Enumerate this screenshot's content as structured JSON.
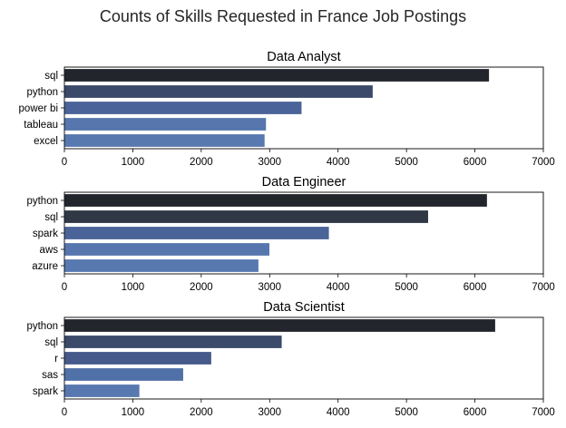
{
  "figure": {
    "title": "Counts of Skills Requested in France Job Postings"
  },
  "chart_data": [
    {
      "type": "bar",
      "orientation": "horizontal",
      "title": "Data Analyst",
      "categories": [
        "sql",
        "python",
        "power bi",
        "tableau",
        "excel"
      ],
      "values": [
        6210,
        4510,
        3470,
        2950,
        2930
      ],
      "xlim": [
        0,
        7000
      ],
      "xticks": [
        0,
        1000,
        2000,
        3000,
        4000,
        5000,
        6000,
        7000
      ],
      "xlabel": "",
      "ylabel": "",
      "grid": false,
      "colors": [
        "#22252b",
        "#3b4a6a",
        "#4a6398",
        "#5676ad",
        "#5878b0"
      ]
    },
    {
      "type": "bar",
      "orientation": "horizontal",
      "title": "Data Engineer",
      "categories": [
        "python",
        "sql",
        "spark",
        "aws",
        "azure"
      ],
      "values": [
        6180,
        5320,
        3870,
        3000,
        2840
      ],
      "xlim": [
        0,
        7000
      ],
      "xticks": [
        0,
        1000,
        2000,
        3000,
        4000,
        5000,
        6000,
        7000
      ],
      "xlabel": "",
      "ylabel": "",
      "grid": false,
      "colors": [
        "#22252b",
        "#303846",
        "#4a6398",
        "#5676ad",
        "#5878b0"
      ]
    },
    {
      "type": "bar",
      "orientation": "horizontal",
      "title": "Data Scientist",
      "categories": [
        "python",
        "sql",
        "r",
        "sas",
        "spark"
      ],
      "values": [
        6300,
        3180,
        2150,
        1740,
        1100
      ],
      "xlim": [
        0,
        7000
      ],
      "xticks": [
        0,
        1000,
        2000,
        3000,
        4000,
        5000,
        6000,
        7000
      ],
      "xlabel": "",
      "ylabel": "",
      "grid": false,
      "colors": [
        "#22252b",
        "#3b4a6a",
        "#45598a",
        "#5070a8",
        "#5878b0"
      ]
    }
  ]
}
